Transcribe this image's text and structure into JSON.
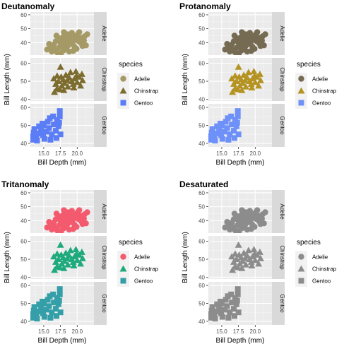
{
  "chart_data": [
    {
      "type": "scatter",
      "title": "Deutanomaly",
      "xlabel": "Bill Depth (mm)",
      "ylabel": "Bill Length (mm)",
      "xlim": [
        13,
        22.5
      ],
      "xticks": [
        "15.0",
        "17.5",
        "20.0"
      ],
      "legend_title": "species",
      "legend_position": "right",
      "facets": [
        {
          "label": "Adelie",
          "ylim": [
            31,
            62
          ],
          "yticks": [
            "40",
            "50",
            "60"
          ],
          "shape": "circle",
          "color": "#A59A66"
        },
        {
          "label": "Chinstrap",
          "ylim": [
            39,
            63
          ],
          "yticks": [
            "40",
            "50",
            "60"
          ],
          "shape": "triangle",
          "color": "#7C6C2E"
        },
        {
          "label": "Gentoo",
          "ylim": [
            38,
            62
          ],
          "yticks": [
            "40",
            "50",
            "60"
          ],
          "shape": "square",
          "color": "#5B7DF6"
        }
      ],
      "series": [
        {
          "name": "Adelie",
          "color": "#A59A66",
          "shape": "circle"
        },
        {
          "name": "Chinstrap",
          "color": "#7C6C2E",
          "shape": "triangle"
        },
        {
          "name": "Gentoo",
          "color": "#5B7DF6",
          "shape": "square"
        }
      ]
    },
    {
      "type": "scatter",
      "title": "Protanomaly",
      "xlabel": "Bill Depth (mm)",
      "ylabel": "Bill Length (mm)",
      "xlim": [
        13,
        22.5
      ],
      "xticks": [
        "15.0",
        "17.5",
        "20.0"
      ],
      "legend_title": "species",
      "legend_position": "right",
      "facets": [
        {
          "label": "Adelie",
          "ylim": [
            31,
            62
          ],
          "yticks": [
            "40",
            "50",
            "60"
          ],
          "shape": "circle",
          "color": "#756A52"
        },
        {
          "label": "Chinstrap",
          "ylim": [
            39,
            63
          ],
          "yticks": [
            "40",
            "50",
            "60"
          ],
          "shape": "triangle",
          "color": "#B49322"
        },
        {
          "label": "Gentoo",
          "ylim": [
            38,
            62
          ],
          "yticks": [
            "40",
            "50",
            "60"
          ],
          "shape": "square",
          "color": "#6E90F9"
        }
      ],
      "series": [
        {
          "name": "Adelie",
          "color": "#756A52",
          "shape": "circle"
        },
        {
          "name": "Chinstrap",
          "color": "#B49322",
          "shape": "triangle"
        },
        {
          "name": "Gentoo",
          "color": "#6E90F9",
          "shape": "square"
        }
      ]
    },
    {
      "type": "scatter",
      "title": "Tritanomaly",
      "xlabel": "Bill Depth (mm)",
      "ylabel": "Bill Length (mm)",
      "xlim": [
        13,
        22.5
      ],
      "xticks": [
        "15.0",
        "17.5",
        "20.0"
      ],
      "legend_title": "species",
      "legend_position": "right",
      "facets": [
        {
          "label": "Adelie",
          "ylim": [
            31,
            62
          ],
          "yticks": [
            "40",
            "50",
            "60"
          ],
          "shape": "circle",
          "color": "#F45A6E"
        },
        {
          "label": "Chinstrap",
          "ylim": [
            39,
            63
          ],
          "yticks": [
            "40",
            "50",
            "60"
          ],
          "shape": "triangle",
          "color": "#1EAA7D"
        },
        {
          "label": "Gentoo",
          "ylim": [
            38,
            62
          ],
          "yticks": [
            "40",
            "50",
            "60"
          ],
          "shape": "square",
          "color": "#349FA8"
        }
      ],
      "series": [
        {
          "name": "Adelie",
          "color": "#F45A6E",
          "shape": "circle"
        },
        {
          "name": "Chinstrap",
          "color": "#1EAA7D",
          "shape": "triangle"
        },
        {
          "name": "Gentoo",
          "color": "#349FA8",
          "shape": "square"
        }
      ]
    },
    {
      "type": "scatter",
      "title": "Desaturated",
      "xlabel": "Bill Depth (mm)",
      "ylabel": "Bill Length (mm)",
      "xlim": [
        13,
        22.5
      ],
      "xticks": [
        "15.0",
        "17.5",
        "20.0"
      ],
      "legend_title": "species",
      "legend_position": "right",
      "facets": [
        {
          "label": "Adelie",
          "ylim": [
            31,
            62
          ],
          "yticks": [
            "40",
            "50",
            "60"
          ],
          "shape": "circle",
          "color": "#8C8C8C"
        },
        {
          "label": "Chinstrap",
          "ylim": [
            39,
            63
          ],
          "yticks": [
            "40",
            "50",
            "60"
          ],
          "shape": "triangle",
          "color": "#8C8C8C"
        },
        {
          "label": "Gentoo",
          "ylim": [
            38,
            62
          ],
          "yticks": [
            "40",
            "50",
            "60"
          ],
          "shape": "square",
          "color": "#8C8C8C"
        }
      ],
      "series": [
        {
          "name": "Adelie",
          "color": "#8C8C8C",
          "shape": "circle"
        },
        {
          "name": "Chinstrap",
          "color": "#8C8C8C",
          "shape": "triangle"
        },
        {
          "name": "Gentoo",
          "color": "#8C8C8C",
          "shape": "square"
        }
      ]
    }
  ],
  "points": {
    "Adelie": [
      [
        17.0,
        33.0
      ],
      [
        16.6,
        35.0
      ],
      [
        17.3,
        36.5
      ],
      [
        18.0,
        34.5
      ],
      [
        18.4,
        36.0
      ],
      [
        17.8,
        38.0
      ],
      [
        18.6,
        37.8
      ],
      [
        19.0,
        39.0
      ],
      [
        17.5,
        40.0
      ],
      [
        18.1,
        40.6
      ],
      [
        18.7,
        41.2
      ],
      [
        19.3,
        40.0
      ],
      [
        19.8,
        42.0
      ],
      [
        20.2,
        41.0
      ],
      [
        18.2,
        42.5
      ],
      [
        18.9,
        43.0
      ],
      [
        19.5,
        44.0
      ],
      [
        20.5,
        43.5
      ],
      [
        21.1,
        44.5
      ],
      [
        21.5,
        46.0
      ],
      [
        20.0,
        45.5
      ],
      [
        19.0,
        45.0
      ],
      [
        17.9,
        44.0
      ],
      [
        18.5,
        46.0
      ],
      [
        17.2,
        42.0
      ],
      [
        16.5,
        38.5
      ],
      [
        16.0,
        37.0
      ],
      [
        15.5,
        35.0
      ],
      [
        16.2,
        33.5
      ],
      [
        15.8,
        39.0
      ],
      [
        16.8,
        41.0
      ],
      [
        17.4,
        43.0
      ],
      [
        20.6,
        39.5
      ],
      [
        21.0,
        41.5
      ],
      [
        20.8,
        37.5
      ],
      [
        19.6,
        37.0
      ],
      [
        19.9,
        35.5
      ],
      [
        18.8,
        33.5
      ],
      [
        17.6,
        32.5
      ],
      [
        19.2,
        47.0
      ],
      [
        20.3,
        47.5
      ],
      [
        18.0,
        47.5
      ],
      [
        16.9,
        45.0
      ],
      [
        21.3,
        38.0
      ],
      [
        19.4,
        34.0
      ]
    ],
    "Chinstrap": [
      [
        16.6,
        44.0
      ],
      [
        17.0,
        46.0
      ],
      [
        16.8,
        48.5
      ],
      [
        17.4,
        45.5
      ],
      [
        17.7,
        47.5
      ],
      [
        18.1,
        49.0
      ],
      [
        18.5,
        50.5
      ],
      [
        17.9,
        51.0
      ],
      [
        18.8,
        52.0
      ],
      [
        19.2,
        50.0
      ],
      [
        19.6,
        51.5
      ],
      [
        19.9,
        53.0
      ],
      [
        20.3,
        52.5
      ],
      [
        20.7,
        54.0
      ],
      [
        19.0,
        55.0
      ],
      [
        18.3,
        53.5
      ],
      [
        17.6,
        52.5
      ],
      [
        17.2,
        50.0
      ],
      [
        18.6,
        47.0
      ],
      [
        19.4,
        48.5
      ],
      [
        20.0,
        49.5
      ],
      [
        20.8,
        50.5
      ],
      [
        17.5,
        58.0
      ],
      [
        16.5,
        51.5
      ],
      [
        18.0,
        45.0
      ],
      [
        19.5,
        46.5
      ],
      [
        20.5,
        47.5
      ],
      [
        19.8,
        55.5
      ],
      [
        17.0,
        53.0
      ]
    ],
    "Gentoo": [
      [
        13.2,
        44.0
      ],
      [
        13.5,
        46.0
      ],
      [
        13.9,
        43.5
      ],
      [
        13.6,
        48.0
      ],
      [
        14.2,
        45.5
      ],
      [
        14.6,
        47.5
      ],
      [
        14.9,
        44.5
      ],
      [
        14.3,
        49.5
      ],
      [
        15.0,
        50.0
      ],
      [
        15.4,
        46.5
      ],
      [
        15.8,
        48.5
      ],
      [
        16.2,
        45.0
      ],
      [
        16.5,
        50.5
      ],
      [
        15.6,
        52.0
      ],
      [
        16.8,
        47.0
      ],
      [
        17.2,
        49.5
      ],
      [
        17.0,
        53.0
      ],
      [
        17.4,
        55.0
      ],
      [
        17.4,
        58.0
      ],
      [
        16.9,
        43.0
      ],
      [
        17.5,
        45.0
      ],
      [
        15.1,
        42.5
      ],
      [
        14.0,
        41.5
      ],
      [
        13.4,
        42.0
      ],
      [
        16.4,
        55.0
      ],
      [
        15.9,
        54.0
      ],
      [
        17.3,
        51.5
      ],
      [
        14.8,
        51.0
      ],
      [
        16.0,
        42.0
      ]
    ]
  }
}
